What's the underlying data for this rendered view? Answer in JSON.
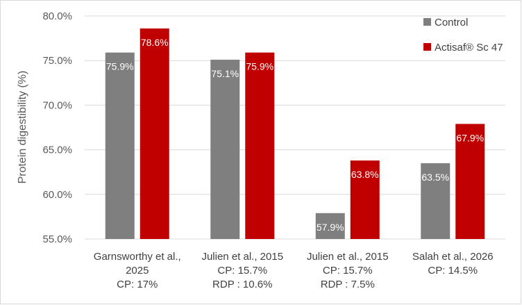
{
  "chart_data": {
    "type": "bar",
    "title": "",
    "ylabel": "Protein digestibility (%)",
    "ylim": [
      55,
      80
    ],
    "yticks": [
      "55.0%",
      "60.0%",
      "65.0%",
      "70.0%",
      "75.0%",
      "80.0%"
    ],
    "ytick_values": [
      55,
      60,
      65,
      70,
      75,
      80
    ],
    "grid": true,
    "legend_position": "top-right",
    "categories": [
      [
        "Garnsworthy  et al.,",
        "2025",
        "CP: 17%"
      ],
      [
        "Julien  et al., 2015",
        "CP: 15.7%",
        "RDP : 10.6%"
      ],
      [
        "Julien  et al., 2015",
        "CP: 15.7%",
        "RDP : 7.5%"
      ],
      [
        "Salah et al., 2026",
        "CP: 14.5%"
      ]
    ],
    "series": [
      {
        "name": "Control",
        "color": "#7f7f7f",
        "values": [
          75.9,
          75.1,
          57.9,
          63.5
        ],
        "labels": [
          "75.9%",
          "75.1%",
          "57.9%",
          "63.5%"
        ]
      },
      {
        "name": "Actisaf® Sc 47",
        "color": "#c00000",
        "values": [
          78.6,
          75.9,
          63.8,
          67.9
        ],
        "labels": [
          "78.6%",
          "75.9%",
          "63.8%",
          "67.9%"
        ]
      }
    ]
  }
}
